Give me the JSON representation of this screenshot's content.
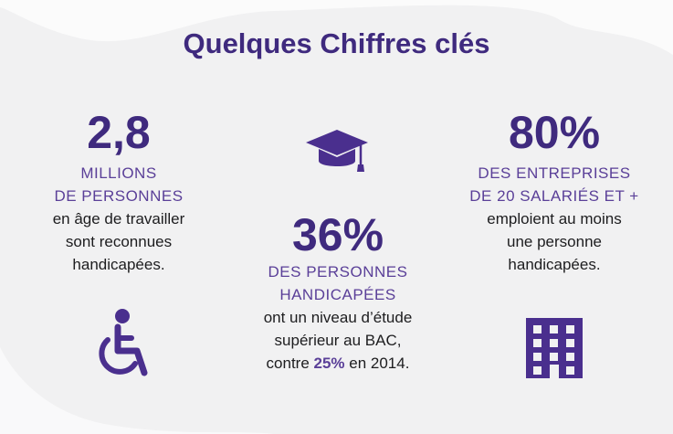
{
  "title": "Quelques Chiffres clés",
  "stat1": {
    "value": "2,8",
    "caps": [
      "MILLIONS",
      "DE PERSONNES"
    ],
    "text": [
      "en âge de travailler",
      "sont reconnues",
      "handicapées."
    ],
    "icon": "wheelchair-icon"
  },
  "stat2": {
    "value": "36%",
    "caps": [
      "DES PERSONNES",
      "HANDICAPÉES"
    ],
    "text": [
      "ont un niveau d’étude",
      "supérieur au BAC,"
    ],
    "last_prefix": "contre ",
    "last_highlight": "25%",
    "last_suffix": " en 2014.",
    "icon": "graduation-cap-icon"
  },
  "stat3": {
    "value": "80%",
    "caps": [
      "DES ENTREPRISES",
      "DE 20 SALARIÉS ET +"
    ],
    "text": [
      "emploient au moins",
      "une personne",
      "handicapées."
    ],
    "icon": "building-icon"
  },
  "colors": {
    "primary": "#3f2a7e",
    "accent": "#5a3f98",
    "background": "#f1f1f2"
  }
}
